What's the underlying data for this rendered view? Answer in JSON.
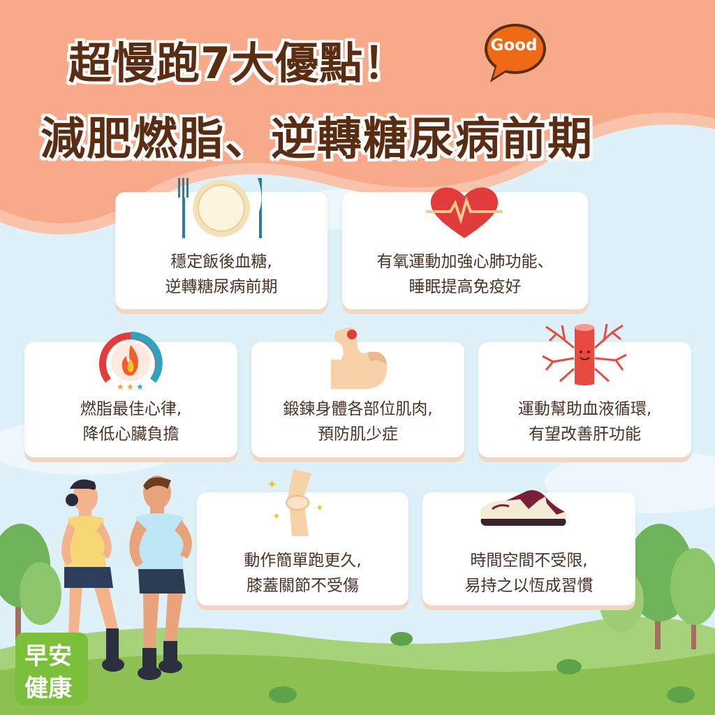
{
  "title": {
    "line1": "超慢跑7大優點！",
    "line2": "減肥燃脂、逆轉糖尿病前期",
    "badge": "Good"
  },
  "colors": {
    "header_bg": "#f7a98a",
    "title_text": "#5a2d12",
    "badge": "#ef6a16",
    "card_shadow": "#f1d6c4",
    "grass": "#8cc152",
    "logo_bg": "#7bbf3a"
  },
  "benefits": [
    {
      "icon": "plate-fork-knife-icon",
      "line1": "穩定飯後血糖,",
      "line2": "逆轉糖尿病前期"
    },
    {
      "icon": "heart-pulse-icon",
      "line1": "有氧運動加強心肺功能、",
      "line2": "睡眠提高免疫好"
    },
    {
      "icon": "fire-gauge-icon",
      "line1": "燃脂最佳心律,",
      "line2": "降低心臟負擔"
    },
    {
      "icon": "muscle-arm-icon",
      "line1": "鍛鍊身體各部位肌肉,",
      "line2": "預防肌少症"
    },
    {
      "icon": "blood-vessel-icon",
      "line1": "運動幫助血液循環,",
      "line2": "有望改善肝功能"
    },
    {
      "icon": "knee-joint-icon",
      "line1": "動作簡單跑更久,",
      "line2": "膝蓋關節不受傷"
    },
    {
      "icon": "running-shoe-icon",
      "line1": "時間空間不受限,",
      "line2": "易持之以恆成習慣"
    }
  ],
  "logo": {
    "line1": "早安",
    "line2": "健康"
  }
}
